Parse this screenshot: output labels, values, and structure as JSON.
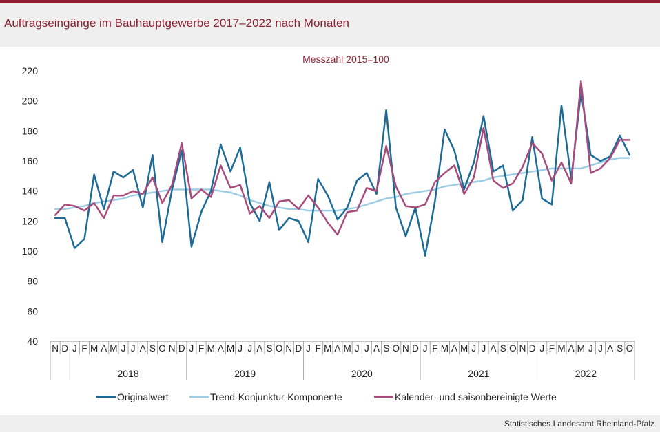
{
  "title": "Auftragseingänge im Bauhauptgewerbe 2017–2022 nach Monaten",
  "source": "Statistisches Landesamt Rheinland-Pfalz",
  "chart_data": {
    "type": "line",
    "title": "Auftragseingänge im Bauhauptgewerbe 2017–2022 nach Monaten",
    "subtitle": "Messzahl 2015=100",
    "ylim": [
      40,
      220
    ],
    "yticks": [
      40,
      60,
      80,
      100,
      120,
      140,
      160,
      180,
      200,
      220
    ],
    "months": [
      "N",
      "D",
      "J",
      "F",
      "M",
      "A",
      "M",
      "J",
      "J",
      "A",
      "S",
      "O",
      "N",
      "D",
      "J",
      "F",
      "M",
      "A",
      "M",
      "J",
      "J",
      "A",
      "S",
      "O",
      "N",
      "D",
      "J",
      "F",
      "M",
      "A",
      "M",
      "J",
      "J",
      "A",
      "S",
      "O",
      "N",
      "D",
      "J",
      "F",
      "M",
      "A",
      "M",
      "J",
      "J",
      "A",
      "S",
      "O",
      "N",
      "D",
      "J",
      "F",
      "M",
      "A",
      "M",
      "J",
      "J",
      "A",
      "S",
      "O"
    ],
    "years": [
      {
        "label": "2018",
        "start": 2,
        "count": 12
      },
      {
        "label": "2019",
        "start": 14,
        "count": 12
      },
      {
        "label": "2020",
        "start": 26,
        "count": 12
      },
      {
        "label": "2021",
        "start": 38,
        "count": 12
      },
      {
        "label": "2022",
        "start": 50,
        "count": 10
      }
    ],
    "series": [
      {
        "name": "Originalwert",
        "color": "#1c6b97",
        "values": [
          122,
          122,
          102,
          108,
          151,
          128,
          153,
          149,
          154,
          129,
          164,
          106,
          141,
          167,
          103,
          126,
          140,
          171,
          153,
          169,
          132,
          120,
          146,
          114,
          122,
          120,
          106,
          148,
          137,
          121,
          129,
          147,
          152,
          138,
          194,
          129,
          110,
          129,
          97,
          133,
          181,
          167,
          141,
          159,
          190,
          153,
          157,
          127,
          134,
          176,
          135,
          131,
          197,
          148,
          206,
          164,
          160,
          163,
          177,
          164
        ]
      },
      {
        "name": "Trend-Konjunktur-Komponente",
        "color": "#9ecde3",
        "values": [
          128,
          128,
          129,
          130,
          132,
          133,
          134,
          135,
          137,
          138,
          139,
          140,
          141,
          141,
          141,
          141,
          141,
          140,
          139,
          137,
          134,
          132,
          130,
          129,
          128,
          128,
          127,
          127,
          127,
          127,
          128,
          129,
          131,
          133,
          135,
          136,
          138,
          139,
          140,
          141,
          143,
          144,
          145,
          146,
          147,
          149,
          150,
          151,
          152,
          153,
          154,
          155,
          155,
          155,
          155,
          157,
          159,
          161,
          162,
          162
        ]
      },
      {
        "name": "Kalender- und saisonbereinigte Werte",
        "color": "#a64b7c",
        "values": [
          124,
          131,
          130,
          127,
          132,
          122,
          137,
          137,
          140,
          138,
          149,
          132,
          144,
          172,
          135,
          141,
          136,
          157,
          142,
          144,
          125,
          130,
          122,
          133,
          134,
          128,
          137,
          129,
          119,
          111,
          126,
          127,
          142,
          140,
          170,
          143,
          130,
          129,
          131,
          146,
          152,
          157,
          138,
          149,
          182,
          147,
          142,
          145,
          156,
          172,
          165,
          147,
          159,
          145,
          213,
          152,
          155,
          162,
          174,
          174
        ]
      }
    ]
  }
}
